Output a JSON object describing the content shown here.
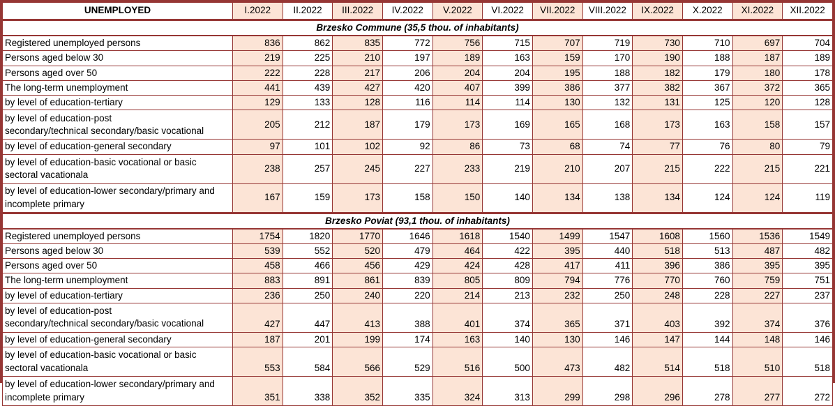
{
  "title": "UNEMPLOYED",
  "months": [
    "I.2022",
    "II.2022",
    "III.2022",
    "IV.2022",
    "V.2022",
    "VI.2022",
    "VII.2022",
    "VIII.2022",
    "IX.2022",
    "X.2022",
    "XI.2022",
    "XII.2022"
  ],
  "sections": [
    {
      "title": "Brzesko Commune (35,5 thou. of inhabitants)",
      "rows": [
        {
          "label": "Registered unemployed persons",
          "values": [
            836,
            862,
            835,
            772,
            756,
            715,
            707,
            719,
            730,
            710,
            697,
            704
          ]
        },
        {
          "label": "Persons aged below 30",
          "values": [
            219,
            225,
            210,
            197,
            189,
            163,
            159,
            170,
            190,
            188,
            187,
            189
          ]
        },
        {
          "label": "Persons aged over 50",
          "values": [
            222,
            228,
            217,
            206,
            204,
            204,
            195,
            188,
            182,
            179,
            180,
            178
          ]
        },
        {
          "label": "The long-term unemployment",
          "values": [
            441,
            439,
            427,
            420,
            407,
            399,
            386,
            377,
            382,
            367,
            372,
            365
          ]
        },
        {
          "label": "by level of education-tertiary",
          "values": [
            129,
            133,
            128,
            116,
            114,
            114,
            130,
            132,
            131,
            125,
            120,
            128
          ]
        },
        {
          "label": "by level of education-post\nsecondary/technical secondary/basic vocational",
          "values": [
            205,
            212,
            187,
            179,
            173,
            169,
            165,
            168,
            173,
            163,
            158,
            157
          ]
        },
        {
          "label": "by level of education-general secondary",
          "values": [
            97,
            101,
            102,
            92,
            86,
            73,
            68,
            74,
            77,
            76,
            80,
            79
          ]
        },
        {
          "label": "by level of education-basic vocational or basic\nsectoral vacationala",
          "values": [
            238,
            257,
            245,
            227,
            233,
            219,
            210,
            207,
            215,
            222,
            215,
            221
          ]
        },
        {
          "label": "by level of education-lower secondary/primary and\nincomplete primary",
          "values": [
            167,
            159,
            173,
            158,
            150,
            140,
            134,
            138,
            134,
            124,
            124,
            119
          ]
        }
      ]
    },
    {
      "title": "Brzesko Poviat (93,1 thou. of inhabitants)",
      "rows": [
        {
          "label": "Registered unemployed persons",
          "values": [
            1754,
            1820,
            1770,
            1646,
            1618,
            1540,
            1499,
            1547,
            1608,
            1560,
            1536,
            1549
          ]
        },
        {
          "label": "Persons aged below 30",
          "values": [
            539,
            552,
            520,
            479,
            464,
            422,
            395,
            440,
            518,
            513,
            487,
            482
          ]
        },
        {
          "label": "Persons aged over 50",
          "values": [
            458,
            466,
            456,
            429,
            424,
            428,
            417,
            411,
            396,
            386,
            395,
            395
          ]
        },
        {
          "label": "The long-term unemployment",
          "values": [
            883,
            891,
            861,
            839,
            805,
            809,
            794,
            776,
            770,
            760,
            759,
            751
          ]
        },
        {
          "label": "by level of education-tertiary",
          "values": [
            236,
            250,
            240,
            220,
            214,
            213,
            232,
            250,
            248,
            228,
            227,
            237
          ]
        },
        {
          "label": "by level of education-post\nsecondary/technical secondary/basic vocational",
          "values": [
            427,
            447,
            413,
            388,
            401,
            374,
            365,
            371,
            403,
            392,
            374,
            376
          ]
        },
        {
          "label": "by level of education-general secondary",
          "values": [
            187,
            201,
            199,
            174,
            163,
            140,
            130,
            146,
            147,
            144,
            148,
            146
          ]
        },
        {
          "label": "by level of education-basic vocational or basic\nsectoral vacationala",
          "values": [
            553,
            584,
            566,
            529,
            516,
            500,
            473,
            482,
            514,
            518,
            510,
            518
          ]
        },
        {
          "label": "by level of education-lower secondary/primary and\nincomplete primary",
          "values": [
            351,
            338,
            352,
            335,
            324,
            313,
            299,
            298,
            296,
            278,
            277,
            272
          ]
        }
      ]
    }
  ],
  "colors": {
    "border": "#963634",
    "odd_column_fill": "#FCE4D6",
    "even_column_fill": "#FFFFFF"
  }
}
